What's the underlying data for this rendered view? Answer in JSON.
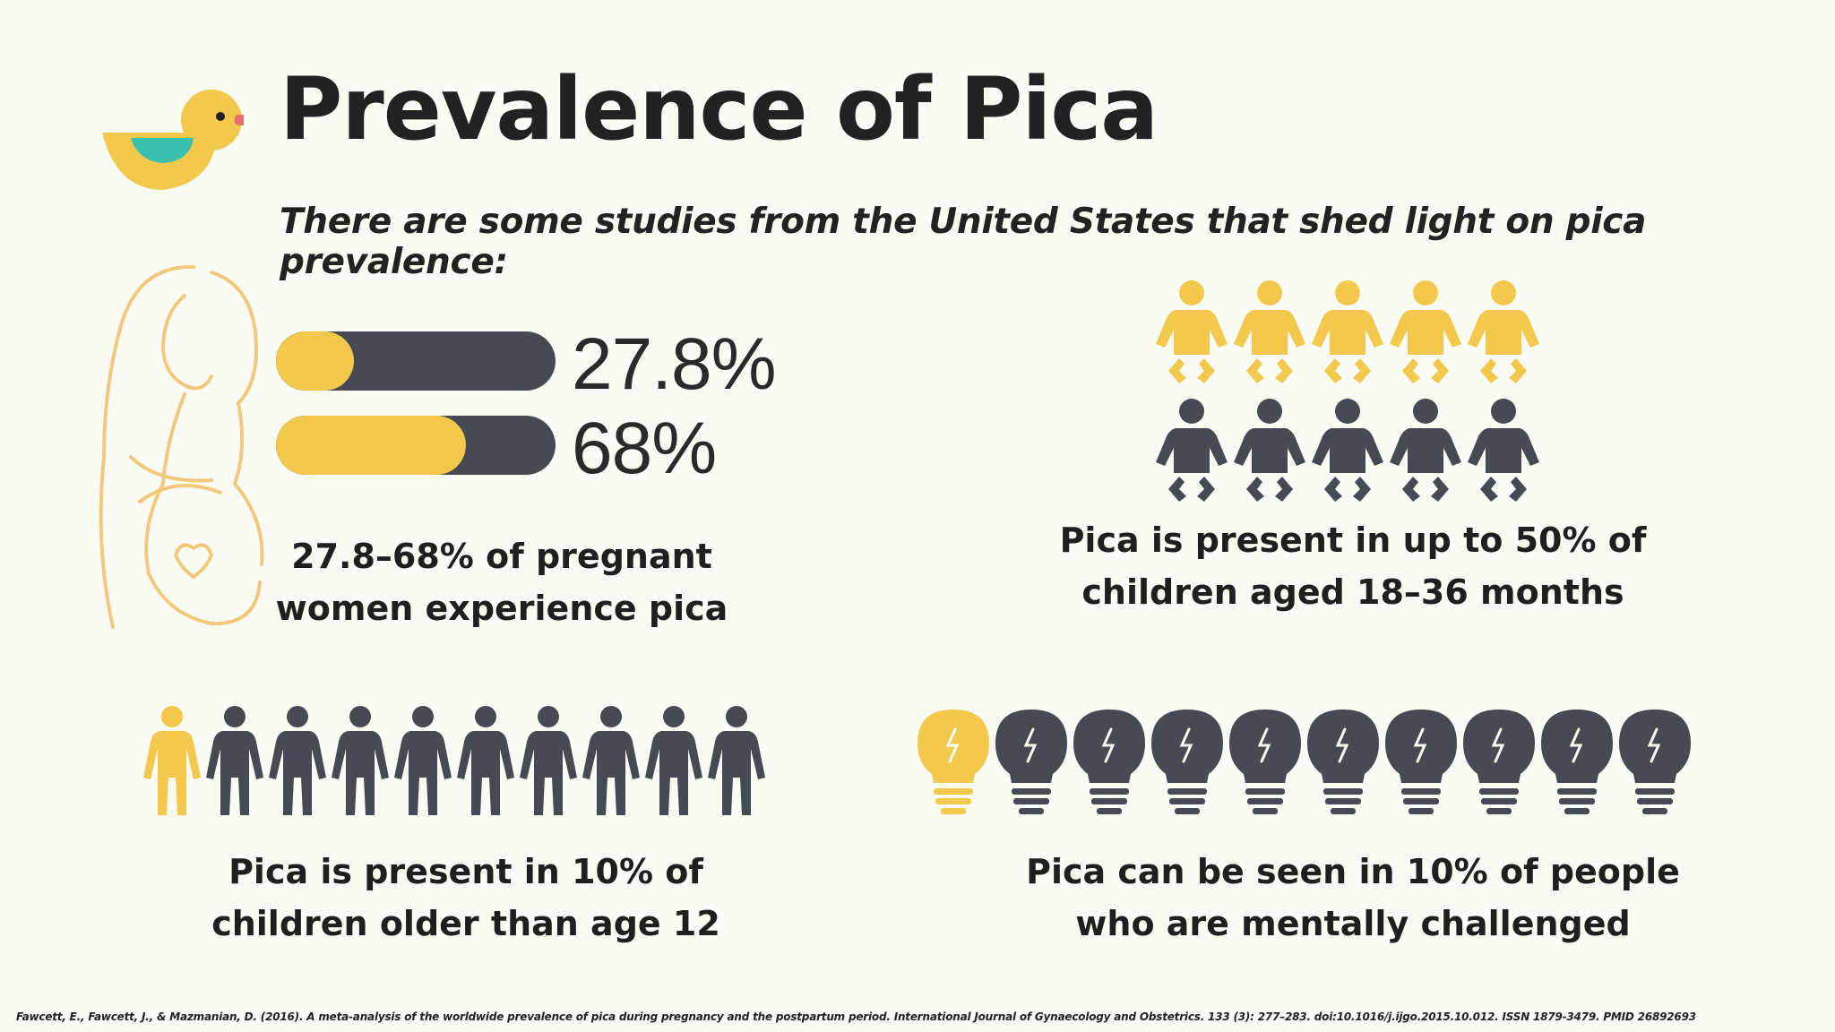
{
  "title": "Prevalence of Pica",
  "subtitle": "There are some studies from the United States that shed light on pica prevalence:",
  "colors": {
    "yellow": "#f2c94c",
    "dark": "#474a52",
    "teal": "#3bbfad",
    "beak": "#e8706a",
    "outline": "#f2c97a"
  },
  "pregnancy": {
    "icon": "pregnant-woman-icon",
    "bars": [
      {
        "label": "27.8%",
        "value": 0.278
      },
      {
        "label": "68%",
        "value": 0.68
      }
    ],
    "caption_line1": "27.8–68% of pregnant",
    "caption_line2": "women experience pica"
  },
  "toddlers": {
    "icon": "baby-icon",
    "highlighted": 5,
    "total": 10,
    "caption_line1": "Pica is present in up to 50% of",
    "caption_line2": "children aged 18–36 months"
  },
  "older_children": {
    "icon": "person-icon",
    "highlighted": 1,
    "total": 10,
    "caption_line1": "Pica is present in 10% of",
    "caption_line2": "children older than age 12"
  },
  "mental": {
    "icon": "lightbulb-icon",
    "highlighted": 1,
    "total": 10,
    "caption_line1": "Pica can be seen in 10% of people",
    "caption_line2": "who are mentally challenged"
  },
  "citation": "Fawcett, E., Fawcett, J., & Mazmanian, D. (2016). A meta-analysis of the worldwide prevalence of pica during pregnancy and the postpartum period. International Journal of Gynaecology and Obstetrics. 133 (3): 277–283. doi:10.1016/j.ijgo.2015.10.012. ISSN 1879-3479. PMID 26892693"
}
